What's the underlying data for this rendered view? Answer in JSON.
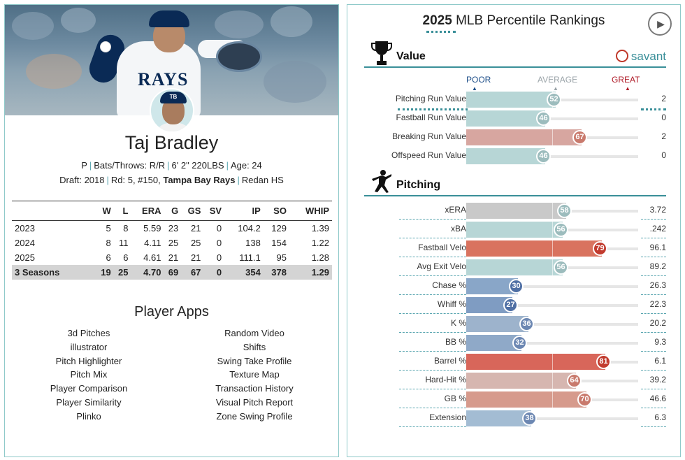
{
  "player": {
    "name": "Taj Bradley",
    "position": "P",
    "bats_throws": "Bats/Throws: R/R",
    "height_weight": "6' 2\" 220LBS",
    "age": "Age: 24",
    "draft": "Draft: 2018",
    "draft_pick": "Rd: 5, #150,",
    "team": "Tampa Bay Rays",
    "school": "Redan HS",
    "jersey_text": "RAYS",
    "cap_logo": "TB"
  },
  "stats": {
    "headers": [
      "",
      "W",
      "L",
      "ERA",
      "G",
      "GS",
      "SV",
      "IP",
      "SO",
      "WHIP"
    ],
    "rows": [
      [
        "2023",
        "5",
        "8",
        "5.59",
        "23",
        "21",
        "0",
        "104.2",
        "129",
        "1.39"
      ],
      [
        "2024",
        "8",
        "11",
        "4.11",
        "25",
        "25",
        "0",
        "138",
        "154",
        "1.22"
      ],
      [
        "2025",
        "6",
        "6",
        "4.61",
        "21",
        "21",
        "0",
        "111.1",
        "95",
        "1.28"
      ]
    ],
    "total": [
      "3 Seasons",
      "19",
      "25",
      "4.70",
      "69",
      "67",
      "0",
      "354",
      "378",
      "1.29"
    ]
  },
  "apps": {
    "title": "Player Apps",
    "left": [
      "3d Pitches",
      "illustrator",
      "Pitch Highlighter",
      "Pitch Mix",
      "Player Comparison",
      "Player Similarity",
      "Plinko"
    ],
    "right": [
      "Random Video",
      "Shifts",
      "Swing Take Profile",
      "Texture Map",
      "Transaction History",
      "Visual Pitch Report",
      "Zone Swing Profile"
    ]
  },
  "rankings": {
    "year": "2025",
    "title": "MLB Percentile Rankings",
    "brand": "savant",
    "scale": {
      "poor": "POOR",
      "average": "AVERAGE",
      "great": "GREAT"
    },
    "value_section": "Value",
    "pitching_section": "Pitching",
    "value": [
      {
        "label": "Pitching Run Value",
        "pct": 52,
        "value": "2",
        "color": "#b7d6d6"
      },
      {
        "label": "Fastball Run Value",
        "pct": 46,
        "value": "0",
        "color": "#b7d6d6"
      },
      {
        "label": "Breaking Run Value",
        "pct": 67,
        "value": "2",
        "color": "#d7a6a0"
      },
      {
        "label": "Offspeed Run Value",
        "pct": 46,
        "value": "0",
        "color": "#b7d6d6"
      }
    ],
    "pitching": [
      {
        "label": "xERA",
        "pct": 58,
        "value": "3.72",
        "color": "#c9c9c9"
      },
      {
        "label": "xBA",
        "pct": 56,
        "value": ".242",
        "color": "#b7d6d6"
      },
      {
        "label": "Fastball Velo",
        "pct": 79,
        "value": "96.1",
        "color": "#d9735f"
      },
      {
        "label": "Avg Exit Velo",
        "pct": 56,
        "value": "89.2",
        "color": "#b7d6d6"
      },
      {
        "label": "Chase %",
        "pct": 30,
        "value": "26.3",
        "color": "#89a6c8"
      },
      {
        "label": "Whiff %",
        "pct": 27,
        "value": "22.3",
        "color": "#7f9cc2"
      },
      {
        "label": "K %",
        "pct": 36,
        "value": "20.2",
        "color": "#9db3cc"
      },
      {
        "label": "BB %",
        "pct": 32,
        "value": "9.3",
        "color": "#8fa9c8"
      },
      {
        "label": "Barrel %",
        "pct": 81,
        "value": "6.1",
        "color": "#d8665a"
      },
      {
        "label": "Hard-Hit %",
        "pct": 64,
        "value": "39.2",
        "color": "#d6b6b0"
      },
      {
        "label": "GB %",
        "pct": 70,
        "value": "46.6",
        "color": "#d69a8c"
      },
      {
        "label": "Extension",
        "pct": 38,
        "value": "6.3",
        "color": "#a3bcd3"
      }
    ],
    "bubble_colors": {
      "poor_dark": "#5f7fae",
      "avg": "#9fbfc0",
      "good_dark": "#c0463a"
    }
  }
}
